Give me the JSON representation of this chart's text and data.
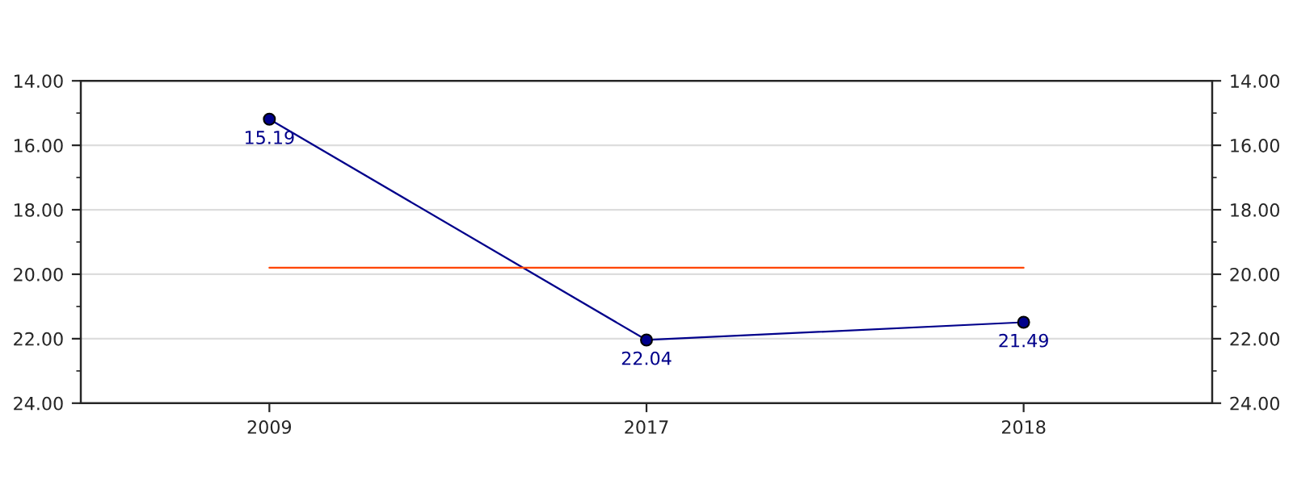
{
  "chart_data": {
    "type": "line",
    "categories": [
      "2009",
      "2017",
      "2018"
    ],
    "series": [
      {
        "color": "#00008b",
        "values": [
          15.19,
          22.04,
          21.49
        ],
        "marker": "circle",
        "value_labels": [
          "15.19",
          "22.04",
          "21.49"
        ]
      },
      {
        "color": "#ff4500",
        "values": [
          19.8,
          19.8,
          19.8
        ],
        "marker": "none"
      }
    ],
    "ylim": [
      24,
      14
    ],
    "yticks": [
      {
        "value": 14,
        "label": "14.00"
      },
      {
        "value": 16,
        "label": "16.00"
      },
      {
        "value": 18,
        "label": "18.00"
      },
      {
        "value": 20,
        "label": "20.00"
      },
      {
        "value": 22,
        "label": "22.00"
      },
      {
        "value": 24,
        "label": "24.00"
      }
    ],
    "y2lim": [
      24,
      14
    ],
    "y2ticks": [
      {
        "value": 14,
        "label": "14.00"
      },
      {
        "value": 16,
        "label": "16.00"
      },
      {
        "value": 18,
        "label": "18.00"
      },
      {
        "value": 20,
        "label": "20.00"
      },
      {
        "value": 22,
        "label": "22.00"
      },
      {
        "value": 24,
        "label": "24.00"
      }
    ],
    "grid": "y"
  }
}
